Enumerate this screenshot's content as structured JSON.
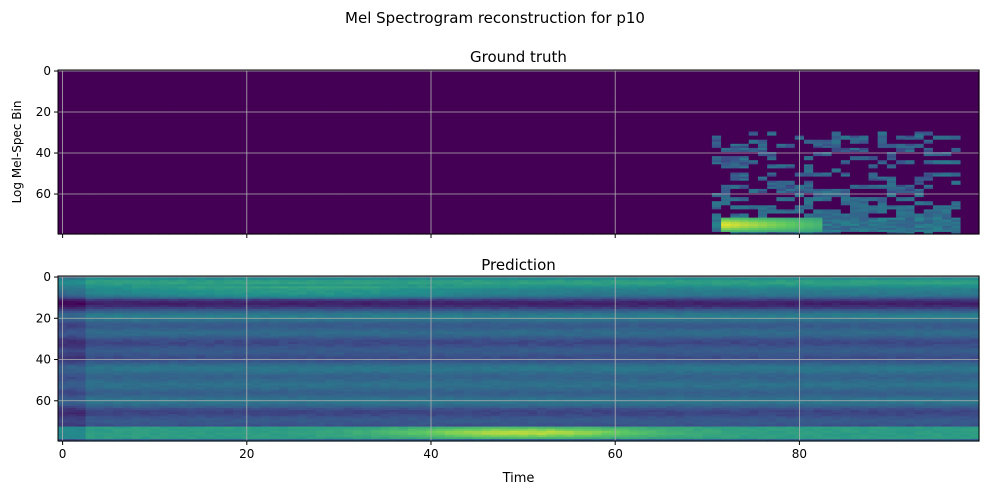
{
  "figure": {
    "suptitle": "Mel Spectrogram reconstruction for p10"
  },
  "chart_data": [
    {
      "type": "heatmap",
      "title": "Ground truth",
      "xlabel": "",
      "ylabel": "Log Mel-Spec Bin",
      "xlim": [
        -0.5,
        99.5
      ],
      "ylim": [
        79.5,
        -0.5
      ],
      "x_ticks": [
        0,
        20,
        40,
        60,
        80
      ],
      "y_ticks": [
        0,
        20,
        40,
        60
      ],
      "x_tick_labels_shown": false,
      "grid": true,
      "colormap": "viridis",
      "colormap_stops": [
        "#440154",
        "#3b528b",
        "#21918c",
        "#5ec962",
        "#fde725"
      ],
      "n_time": 100,
      "n_bins": 80,
      "features": {
        "silent_until_time": 71,
        "active_time_range": [
          71,
          97
        ],
        "active_bin_range": [
          25,
          79
        ],
        "bright_band_bins": [
          72,
          78
        ],
        "bright_band_time_range": [
          72,
          82
        ]
      }
    },
    {
      "type": "heatmap",
      "title": "Prediction",
      "xlabel": "Time",
      "ylabel": "",
      "xlim": [
        -0.5,
        99.5
      ],
      "ylim": [
        79.5,
        -0.5
      ],
      "x_ticks": [
        0,
        20,
        40,
        60,
        80
      ],
      "y_ticks": [
        0,
        20,
        40,
        60
      ],
      "x_tick_labels_shown": true,
      "grid": true,
      "colormap": "viridis",
      "colormap_stops": [
        "#440154",
        "#3b528b",
        "#21918c",
        "#5ec962",
        "#fde725"
      ],
      "n_time": 100,
      "n_bins": 80,
      "features": {
        "horizontal_banding": true,
        "bright_band_bins": [
          73,
          78
        ],
        "brightest_time_range": [
          40,
          60
        ],
        "dark_band_bins": [
          10,
          14
        ]
      }
    }
  ]
}
